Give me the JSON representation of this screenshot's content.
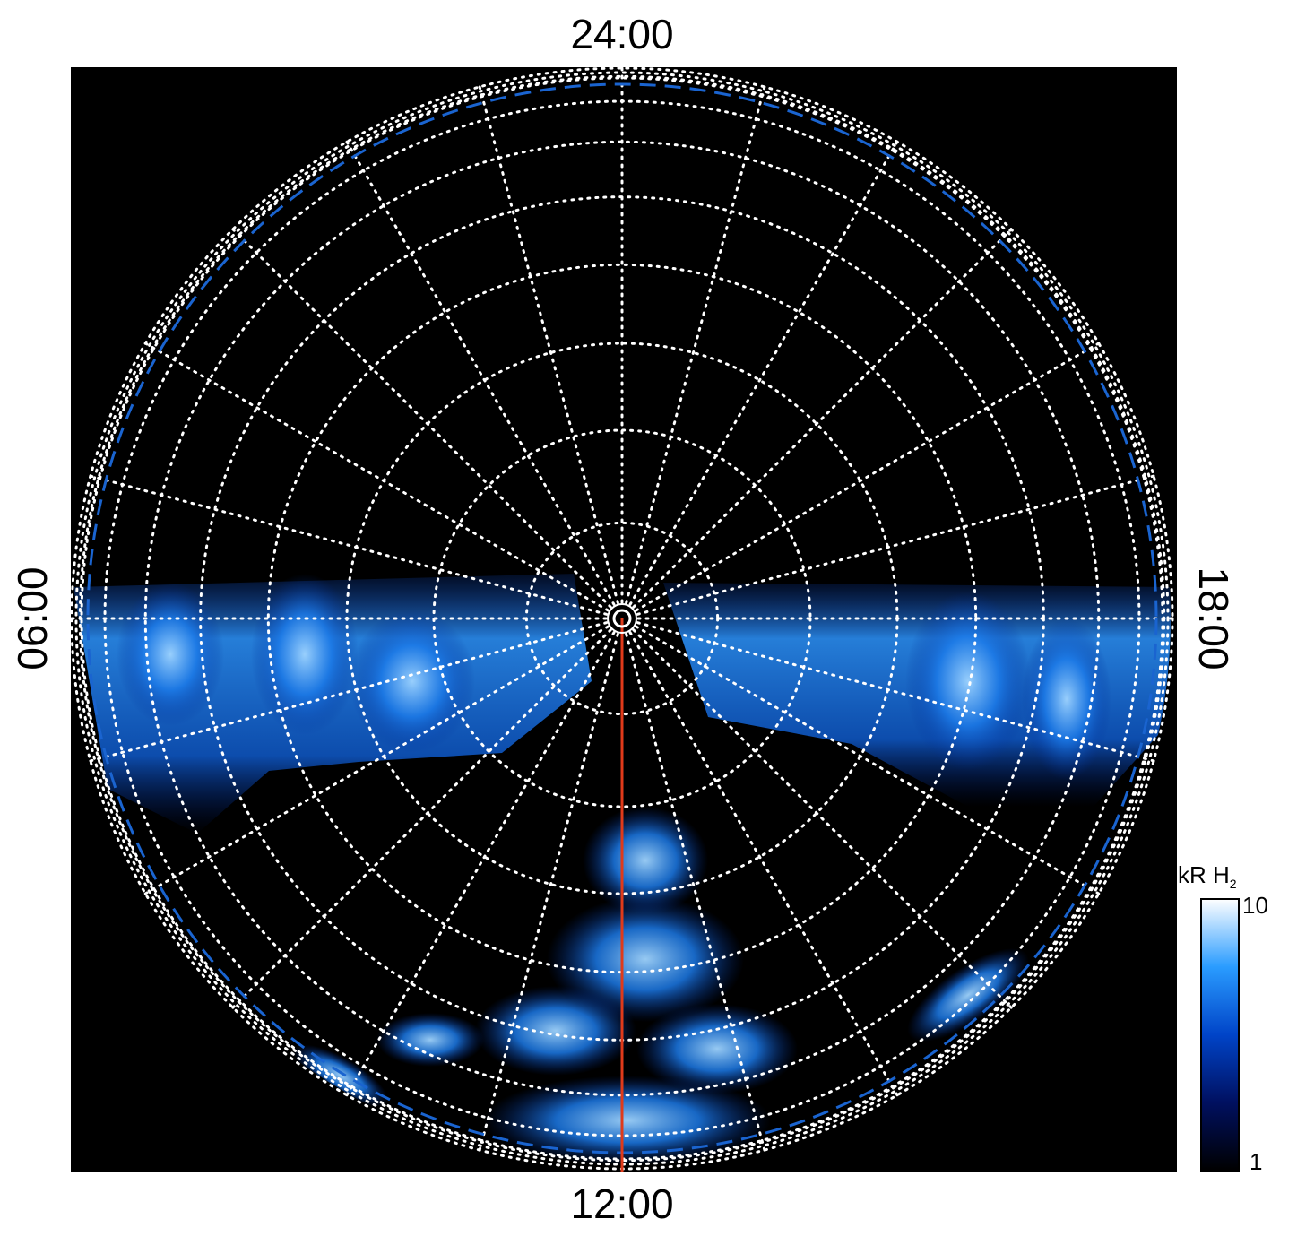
{
  "labels": {
    "top": "24:00",
    "left": "06:00",
    "right": "18:00",
    "bottom": "12:00"
  },
  "colorbar": {
    "label": "kR H",
    "label_subscript": "2",
    "ticks": [
      "10",
      "1"
    ]
  }
}
